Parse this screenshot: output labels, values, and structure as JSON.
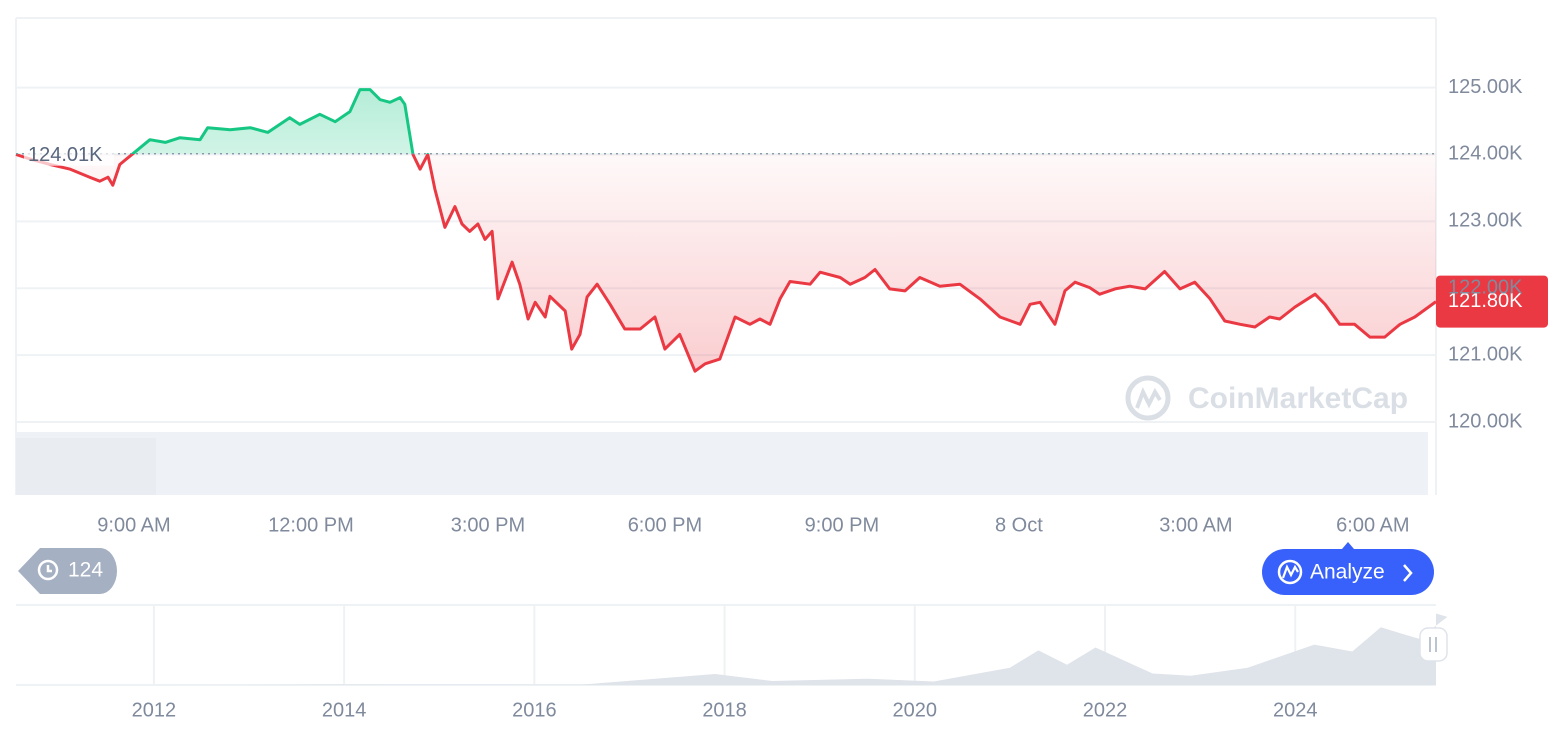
{
  "chart_data": {
    "type": "area",
    "x": [
      7.0,
      7.24,
      7.58,
      7.92,
      8.25,
      8.42,
      8.56,
      8.64,
      8.76,
      9.02,
      9.27,
      9.53,
      9.78,
      10.12,
      10.25,
      10.63,
      10.97,
      11.27,
      11.64,
      11.81,
      12.15,
      12.41,
      12.66,
      12.83,
      13.0,
      13.17,
      13.34,
      13.51,
      13.59,
      13.73,
      13.85,
      13.98,
      14.1,
      14.27,
      14.44,
      14.56,
      14.69,
      14.83,
      14.95,
      15.07,
      15.17,
      15.41,
      15.54,
      15.68,
      15.8,
      15.97,
      16.05,
      16.31,
      16.42,
      16.56,
      16.68,
      16.85,
      17.07,
      17.32,
      17.58,
      17.83,
      18.0,
      18.25,
      18.51,
      18.68,
      18.93,
      19.19,
      19.44,
      19.61,
      19.78,
      19.95,
      20.12,
      20.46,
      20.63,
      20.97,
      21.14,
      21.39,
      21.56,
      21.81,
      22.07,
      22.32,
      22.66,
      23.0,
      23.34,
      23.68,
      24.02,
      24.19,
      24.36,
      24.61,
      24.78,
      24.95,
      25.2,
      25.37,
      25.63,
      25.88,
      26.14,
      26.47,
      26.73,
      26.98,
      27.24,
      27.49,
      27.75,
      28.0,
      28.25,
      28.42,
      28.68,
      29.02,
      29.19,
      29.44,
      29.69,
      29.95,
      30.2,
      30.46,
      30.71,
      31.07
    ],
    "values": [
      124000,
      123930,
      123850,
      123780,
      123660,
      123600,
      123660,
      123540,
      123850,
      124040,
      124220,
      124180,
      124250,
      124220,
      124400,
      124370,
      124400,
      124330,
      124550,
      124450,
      124600,
      124490,
      124640,
      124970,
      124970,
      124820,
      124780,
      124850,
      124750,
      124000,
      123780,
      124000,
      123480,
      122910,
      123220,
      122960,
      122850,
      122960,
      122730,
      122850,
      121840,
      122390,
      122060,
      121540,
      121790,
      121570,
      121880,
      121660,
      121090,
      121310,
      121870,
      122060,
      121760,
      121390,
      121390,
      121570,
      121090,
      121310,
      120760,
      120870,
      120940,
      121570,
      121460,
      121540,
      121460,
      121840,
      122100,
      122060,
      122240,
      122160,
      122060,
      122160,
      122280,
      121990,
      121960,
      122160,
      122030,
      122060,
      121840,
      121570,
      121460,
      121760,
      121790,
      121460,
      121960,
      122090,
      122010,
      121910,
      121990,
      122030,
      121990,
      122250,
      121990,
      122090,
      121840,
      121510,
      121460,
      121420,
      121570,
      121540,
      121720,
      121910,
      121760,
      121460,
      121460,
      121270,
      121270,
      121460,
      121570,
      121800
    ],
    "xlim": [
      7.0,
      31.07
    ],
    "xticks": [
      {
        "value": 9,
        "label": "9:00 AM"
      },
      {
        "value": 12,
        "label": "12:00 PM"
      },
      {
        "value": 15,
        "label": "3:00 PM"
      },
      {
        "value": 18,
        "label": "6:00 PM"
      },
      {
        "value": 21,
        "label": "9:00 PM"
      },
      {
        "value": 24,
        "label": "8 Oct"
      },
      {
        "value": 27,
        "label": "3:00 AM"
      },
      {
        "value": 30,
        "label": "6:00 AM"
      }
    ],
    "ylim": [
      120000,
      126040
    ],
    "yticks": [
      {
        "value": 125000,
        "label": "125.00K"
      },
      {
        "value": 124000,
        "label": "124.00K"
      },
      {
        "value": 123000,
        "label": "123.00K"
      },
      {
        "value": 122000,
        "label": "122.00K"
      },
      {
        "value": 121000,
        "label": "121.00K"
      },
      {
        "value": 120000,
        "label": "120.00K"
      }
    ],
    "baseline": {
      "value": 124010,
      "label": "124.01K"
    },
    "last_price": {
      "value": 121800,
      "label": "121.80K"
    },
    "colors": {
      "up": "#16c784",
      "down": "#ea3943"
    },
    "grid": true
  },
  "navigator": {
    "type": "area",
    "x": [
      2010.55,
      2013.0,
      2013.9,
      2016.5,
      2017.9,
      2018.5,
      2019.5,
      2020.2,
      2021.0,
      2021.3,
      2021.6,
      2021.9,
      2022.5,
      2022.9,
      2023.5,
      2024.2,
      2024.6,
      2024.9,
      2025.3,
      2025.6,
      2025.48
    ],
    "values": [
      0,
      200,
      1000,
      700,
      19000,
      7000,
      11000,
      6000,
      30000,
      60000,
      35000,
      65000,
      20000,
      16000,
      30000,
      70000,
      58000,
      100000,
      80000,
      118000,
      124000
    ],
    "xlim": [
      2010.55,
      2025.48
    ],
    "xticks": [
      2012,
      2014,
      2016,
      2018,
      2020,
      2022,
      2024
    ],
    "ylim": [
      0,
      130000
    ],
    "color": "#dfe3ea"
  },
  "ui": {
    "history_count": 124,
    "analyze_button": "Analyze",
    "watermark": "CoinMarketCap"
  }
}
